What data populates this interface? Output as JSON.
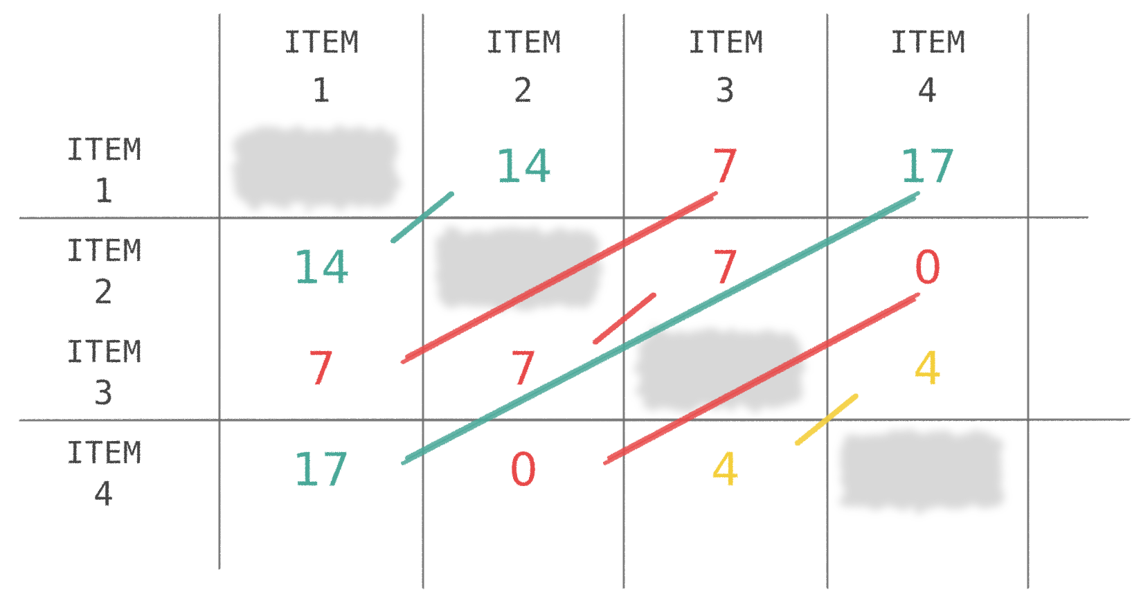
{
  "columns": [
    {
      "label": "ITEM",
      "number": "1"
    },
    {
      "label": "ITEM",
      "number": "2"
    },
    {
      "label": "ITEM",
      "number": "3"
    },
    {
      "label": "ITEM",
      "number": "4"
    }
  ],
  "rows": [
    {
      "label": "ITEM",
      "number": "1",
      "cells": [
        "",
        "14",
        "7",
        "17"
      ]
    },
    {
      "label": "ITEM",
      "number": "2",
      "cells": [
        "14",
        "",
        "7",
        "0"
      ]
    },
    {
      "label": "ITEM",
      "number": "3",
      "cells": [
        "7",
        "7",
        "",
        "4"
      ]
    },
    {
      "label": "ITEM",
      "number": "4",
      "cells": [
        "17",
        "0",
        "4",
        ""
      ]
    }
  ],
  "colors": {
    "grid": "#6f6f6f",
    "label": "#454545",
    "teal": "#4aa898",
    "red": "#e84a4a",
    "yellow": "#f4cf3a",
    "diagonal_shade": "#9a9a9a"
  },
  "value_colors": {
    "14": "teal",
    "17": "teal",
    "7": "red",
    "0": "red",
    "4": "yellow"
  }
}
